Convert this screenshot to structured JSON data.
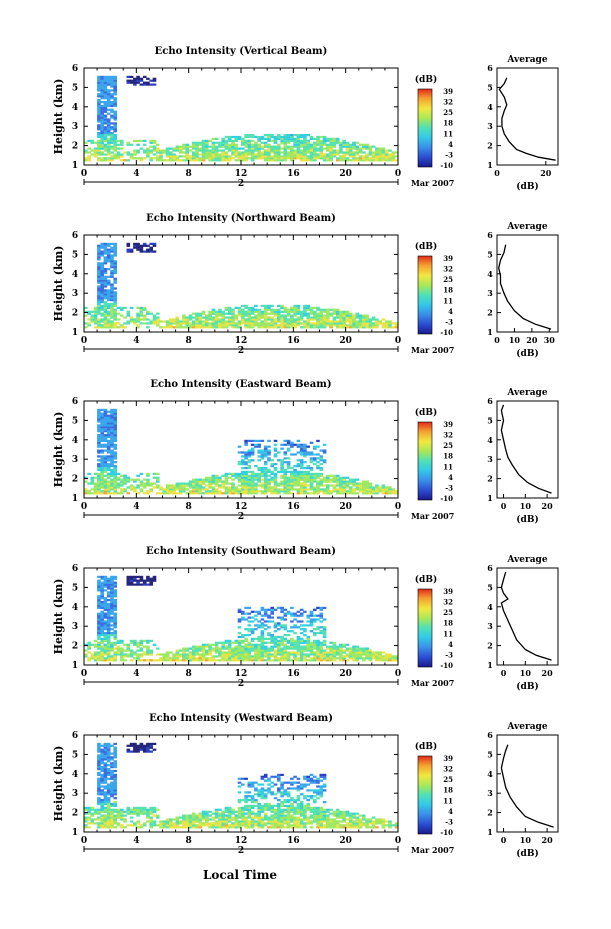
{
  "figure": {
    "xlabel": "Local Time",
    "date_label": "Mar 2007",
    "cbar_unit": "(dB)",
    "avg_xlabel": "(dB)"
  },
  "chart_data": [
    {
      "type": "heatmap",
      "title": "Echo Intensity (Vertical Beam)",
      "ylabel": "Height (km)",
      "xlim": [
        0,
        24
      ],
      "ylim": [
        1,
        6
      ],
      "x_ticks": [
        "0",
        "4",
        "8",
        "12",
        "16",
        "20",
        "0"
      ],
      "y_ticks": [
        "1",
        "2",
        "3",
        "4",
        "5",
        "6"
      ],
      "date_tick": "2",
      "colorbar_ticks": [
        "39",
        "32",
        "25",
        "18",
        "11",
        "4",
        "-3",
        "-10"
      ],
      "average": {
        "title": "Average",
        "xlim": [
          0,
          25
        ],
        "x_ticks": [
          "0",
          "20"
        ],
        "y_ticks": [
          "1",
          "2",
          "3",
          "4",
          "5",
          "6"
        ],
        "profile": [
          [
            24,
            1.25
          ],
          [
            17,
            1.4
          ],
          [
            12,
            1.6
          ],
          [
            8,
            1.8
          ],
          [
            5,
            2.2
          ],
          [
            3,
            2.6
          ],
          [
            2,
            3.0
          ],
          [
            2,
            3.4
          ],
          [
            3,
            3.8
          ],
          [
            4,
            4.1
          ],
          [
            3,
            4.5
          ],
          [
            1,
            4.9
          ],
          [
            3,
            5.2
          ],
          [
            4,
            5.5
          ]
        ]
      }
    },
    {
      "type": "heatmap",
      "title": "Echo Intensity (Northward Beam)",
      "ylabel": "Height (km)",
      "xlim": [
        0,
        24
      ],
      "ylim": [
        1,
        6
      ],
      "x_ticks": [
        "0",
        "4",
        "8",
        "12",
        "16",
        "20",
        "0"
      ],
      "y_ticks": [
        "1",
        "2",
        "3",
        "4",
        "5",
        "6"
      ],
      "date_tick": "2",
      "colorbar_ticks": [
        "39",
        "32",
        "25",
        "18",
        "11",
        "4",
        "-3",
        "-10"
      ],
      "average": {
        "title": "Average",
        "xlim": [
          0,
          35
        ],
        "x_ticks": [
          "0",
          "10",
          "20",
          "30"
        ],
        "y_ticks": [
          "1",
          "2",
          "3",
          "4",
          "5",
          "6"
        ],
        "profile": [
          [
            31,
            1.15
          ],
          [
            22,
            1.4
          ],
          [
            15,
            1.7
          ],
          [
            10,
            2.1
          ],
          [
            6,
            2.6
          ],
          [
            4,
            3.0
          ],
          [
            2,
            3.5
          ],
          [
            2,
            3.9
          ],
          [
            1,
            4.3
          ],
          [
            2,
            4.7
          ],
          [
            4,
            5.1
          ],
          [
            5,
            5.5
          ]
        ]
      }
    },
    {
      "type": "heatmap",
      "title": "Echo Intensity (Eastward Beam)",
      "ylabel": "Height (km)",
      "xlim": [
        0,
        24
      ],
      "ylim": [
        1,
        6
      ],
      "x_ticks": [
        "0",
        "4",
        "8",
        "12",
        "16",
        "20",
        "0"
      ],
      "y_ticks": [
        "1",
        "2",
        "3",
        "4",
        "5",
        "6"
      ],
      "date_tick": "2",
      "colorbar_ticks": [
        "39",
        "32",
        "25",
        "18",
        "11",
        "4",
        "-3",
        "-10"
      ],
      "average": {
        "title": "Average",
        "xlim": [
          -3,
          25
        ],
        "x_ticks": [
          "0",
          "10",
          "20"
        ],
        "y_ticks": [
          "1",
          "2",
          "3",
          "4",
          "5",
          "6"
        ],
        "profile": [
          [
            22,
            1.25
          ],
          [
            16,
            1.5
          ],
          [
            11,
            1.8
          ],
          [
            7,
            2.2
          ],
          [
            4,
            2.7
          ],
          [
            2,
            3.1
          ],
          [
            1,
            3.5
          ],
          [
            0,
            4.0
          ],
          [
            -1,
            4.5
          ],
          [
            0,
            5.0
          ],
          [
            -1,
            5.5
          ],
          [
            0,
            5.8
          ]
        ]
      }
    },
    {
      "type": "heatmap",
      "title": "Echo Intensity (Southward Beam)",
      "ylabel": "Height (km)",
      "xlim": [
        0,
        24
      ],
      "ylim": [
        1,
        6
      ],
      "x_ticks": [
        "0",
        "4",
        "8",
        "12",
        "16",
        "20",
        "0"
      ],
      "y_ticks": [
        "1",
        "2",
        "3",
        "4",
        "5",
        "6"
      ],
      "date_tick": "2",
      "colorbar_ticks": [
        "39",
        "32",
        "25",
        "18",
        "11",
        "4",
        "-3",
        "-10"
      ],
      "average": {
        "title": "Average",
        "xlim": [
          -3,
          25
        ],
        "x_ticks": [
          "0",
          "10",
          "20"
        ],
        "y_ticks": [
          "1",
          "2",
          "3",
          "4",
          "5",
          "6"
        ],
        "profile": [
          [
            22,
            1.25
          ],
          [
            15,
            1.5
          ],
          [
            10,
            1.8
          ],
          [
            6,
            2.3
          ],
          [
            4,
            2.8
          ],
          [
            2,
            3.3
          ],
          [
            0,
            3.8
          ],
          [
            -1,
            4.2
          ],
          [
            2,
            4.4
          ],
          [
            0,
            4.7
          ],
          [
            -1,
            5.0
          ],
          [
            0,
            5.4
          ],
          [
            1,
            5.8
          ]
        ]
      }
    },
    {
      "type": "heatmap",
      "title": "Echo Intensity (Westward Beam)",
      "ylabel": "Height (km)",
      "xlim": [
        0,
        24
      ],
      "ylim": [
        1,
        6
      ],
      "x_ticks": [
        "0",
        "4",
        "8",
        "12",
        "16",
        "20",
        "0"
      ],
      "y_ticks": [
        "1",
        "2",
        "3",
        "4",
        "5",
        "6"
      ],
      "date_tick": "2",
      "colorbar_ticks": [
        "39",
        "32",
        "25",
        "18",
        "11",
        "4",
        "-3",
        "-10"
      ],
      "average": {
        "title": "Average",
        "xlim": [
          -3,
          25
        ],
        "x_ticks": [
          "0",
          "10",
          "20"
        ],
        "y_ticks": [
          "1",
          "2",
          "3",
          "4",
          "5",
          "6"
        ],
        "profile": [
          [
            23,
            1.25
          ],
          [
            16,
            1.5
          ],
          [
            10,
            1.8
          ],
          [
            6,
            2.3
          ],
          [
            3,
            2.8
          ],
          [
            1,
            3.3
          ],
          [
            0,
            3.8
          ],
          [
            -1,
            4.3
          ],
          [
            0,
            4.8
          ],
          [
            1,
            5.2
          ],
          [
            2,
            5.5
          ]
        ]
      }
    }
  ]
}
